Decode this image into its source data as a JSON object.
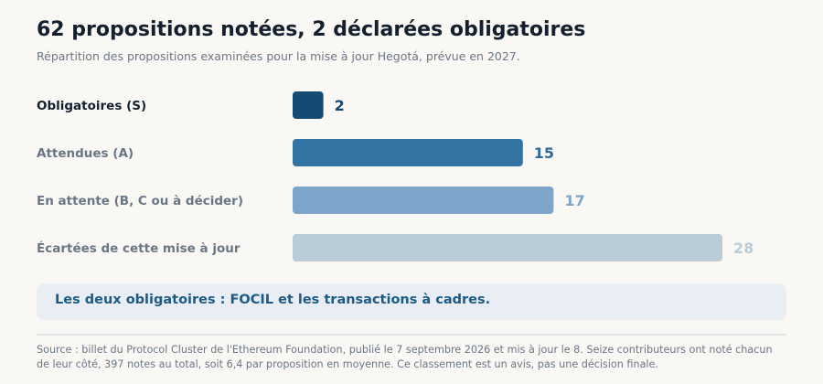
{
  "header": {
    "title": "62 propositions notées, 2 déclarées obligatoires",
    "subtitle": "Répartition des propositions examinées pour la mise à jour Hegotá, prévue en 2027."
  },
  "chart_data": {
    "type": "bar",
    "orientation": "horizontal",
    "categories": [
      "Obligatoires (S)",
      "Attendues (A)",
      "En attente (B, C ou à décider)",
      "Écartées de cette mise à jour"
    ],
    "values": [
      2,
      15,
      17,
      28
    ],
    "data_labels": [
      "2",
      "15",
      "17",
      "28"
    ],
    "bar_colors": [
      "#174a72",
      "#3274a4",
      "#7da5c9",
      "#b9ccd8"
    ],
    "label_colors": [
      "#14202e",
      "#6b7685",
      "#6b7685",
      "#6b7685"
    ],
    "value_label_colors": [
      "#174a72",
      "#2d6a98",
      "#7da5c9",
      "#b9ccd8"
    ],
    "xlim": [
      0,
      28
    ],
    "grid": false,
    "axes_visible": false
  },
  "callout": {
    "text": "Les deux obligatoires : FOCIL et les transactions à cadres."
  },
  "source": {
    "text": "Source : billet du Protocol Cluster de l'Ethereum Foundation, publié le 7 septembre 2026 et mis à jour le 8. Seize contributeurs ont noté chacun de leur côté, 397 notes au total, soit 6,4 par proposition en moyenne. Ce classement est un avis, pas une décision finale."
  }
}
